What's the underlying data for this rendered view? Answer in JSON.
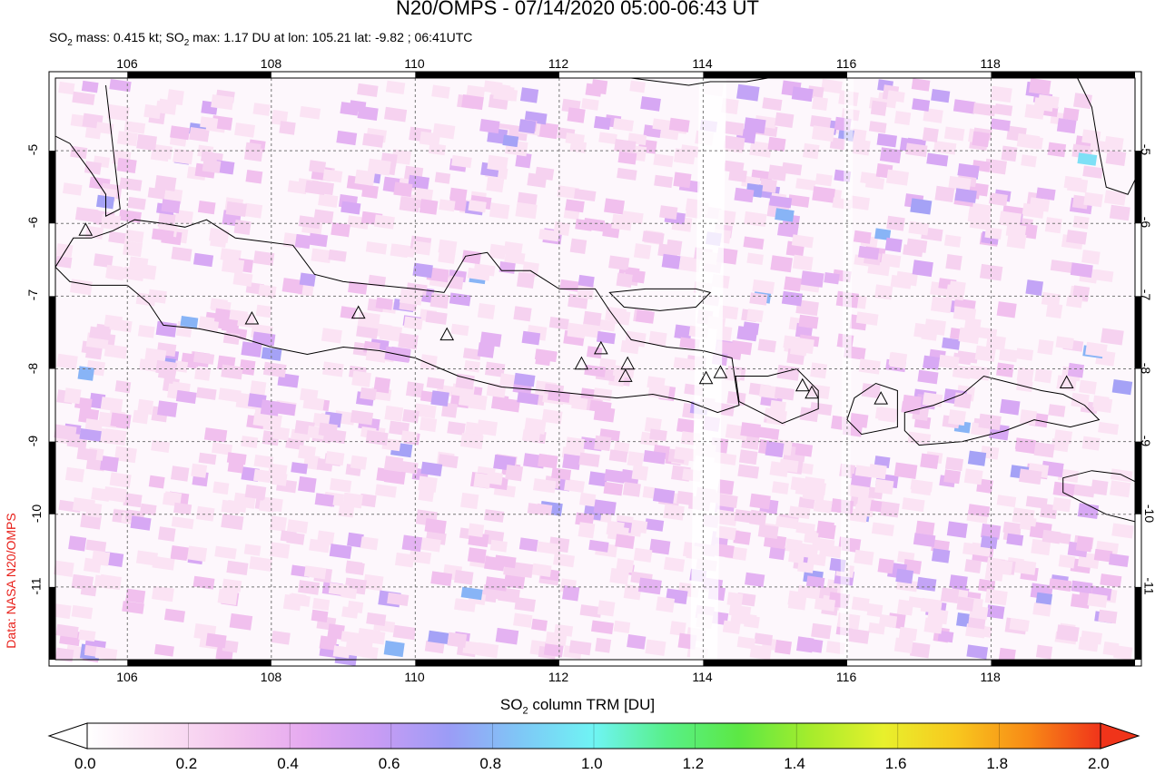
{
  "title": "N20/OMPS - 07/14/2020 05:00-06:43 UT",
  "subtitle": {
    "so2_mass_label": "SO",
    "so2_mass_sub": "2",
    "so2_mass_text": " mass: 0.415 kt; SO",
    "so2_max_sub": "2",
    "so2_max_text": " max: 1.17 DU at lon: 105.21 lat: -9.82 ; 06:41UTC"
  },
  "credit": "Data: NASA N20/OMPS",
  "map": {
    "lon_ticks": [
      "106",
      "108",
      "110",
      "112",
      "114",
      "116",
      "118"
    ],
    "lon_values": [
      106,
      108,
      110,
      112,
      114,
      116,
      118
    ],
    "lat_ticks": [
      "-5",
      "-6",
      "-7",
      "-8",
      "-9",
      "-10",
      "-11"
    ],
    "lat_values": [
      -5,
      -6,
      -7,
      -8,
      -9,
      -10,
      -11
    ],
    "lon_range": [
      105,
      120
    ],
    "lat_range": [
      -12,
      -4
    ],
    "grid": true,
    "volcano_icon": "triangle-icon",
    "volcanoes": [
      {
        "lon": 107.73,
        "lat": -7.32
      },
      {
        "lon": 109.21,
        "lat": -7.24
      },
      {
        "lon": 110.44,
        "lat": -7.54
      },
      {
        "lon": 112.31,
        "lat": -7.94
      },
      {
        "lon": 112.58,
        "lat": -7.73
      },
      {
        "lon": 112.95,
        "lat": -7.94
      },
      {
        "lon": 112.92,
        "lat": -8.11
      },
      {
        "lon": 114.04,
        "lat": -8.14
      },
      {
        "lon": 114.24,
        "lat": -8.06
      },
      {
        "lon": 115.38,
        "lat": -8.24
      },
      {
        "lon": 115.51,
        "lat": -8.34
      },
      {
        "lon": 116.47,
        "lat": -8.42
      },
      {
        "lon": 119.05,
        "lat": -8.2
      },
      {
        "lon": 105.42,
        "lat": -6.1
      }
    ]
  },
  "xlabel": {
    "prefix": "SO",
    "sub": "2",
    "suffix": " column TRM [DU]"
  },
  "colorbar": {
    "min": 0.0,
    "max": 2.0,
    "ticks": [
      "0.0",
      "0.2",
      "0.4",
      "0.6",
      "0.8",
      "1.0",
      "1.2",
      "1.4",
      "1.6",
      "1.8",
      "2.0"
    ],
    "colors": [
      "#ffffff",
      "#fbe3f4",
      "#f4c6ee",
      "#e6aaf0",
      "#c89cf4",
      "#9b9cf6",
      "#7ec8f6",
      "#6ff4f4",
      "#58f08a",
      "#5ce844",
      "#a6ec2c",
      "#e8f02c",
      "#f8c81e",
      "#f88a16",
      "#f0341a"
    ]
  }
}
